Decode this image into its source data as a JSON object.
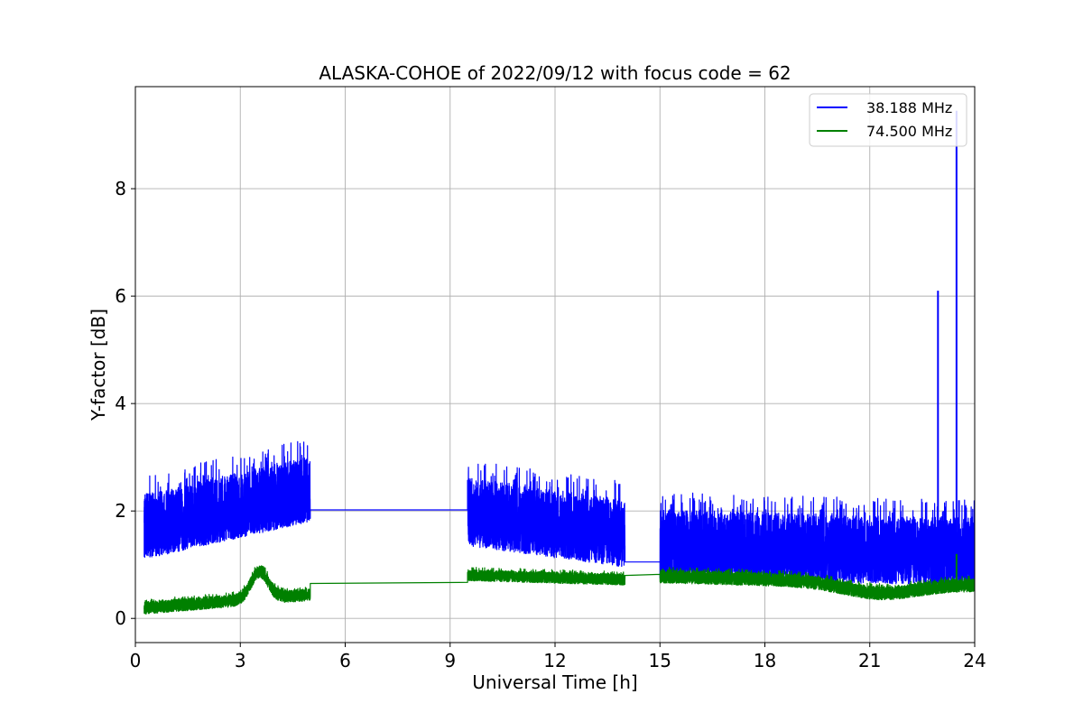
{
  "chart_data": {
    "type": "line",
    "title": "ALASKA-COHOE of 2022/09/12 with focus code = 62",
    "xlabel": "Universal Time [h]",
    "ylabel": "Y-factor [dB]",
    "xlim": [
      0,
      24
    ],
    "ylim": [
      -0.45,
      9.9
    ],
    "xticks": [
      0,
      3,
      6,
      9,
      12,
      15,
      18,
      21,
      24
    ],
    "yticks": [
      0,
      2,
      4,
      6,
      8
    ],
    "grid": true,
    "legend_position": "top-right",
    "series": [
      {
        "name": "38.188 MHz",
        "color": "#0000ff",
        "segments": [
          {
            "kind": "noise",
            "x": [
              0.25,
              5.0
            ],
            "base": [
              1.55,
              2.25
            ],
            "amp_low": 0.45,
            "amp_high": 0.85,
            "rate": 90
          },
          {
            "kind": "line",
            "x": [
              5.0,
              9.5
            ],
            "y": [
              2.02,
              2.02
            ]
          },
          {
            "kind": "noise",
            "x": [
              9.5,
              14.0
            ],
            "base": [
              1.85,
              1.45
            ],
            "amp_low": 0.5,
            "amp_high": 0.85,
            "rate": 90
          },
          {
            "kind": "line",
            "x": [
              14.0,
              15.0
            ],
            "y": [
              1.05,
              1.05
            ]
          },
          {
            "kind": "noise",
            "x": [
              15.0,
              24.0
            ],
            "base": [
              1.25,
              1.1
            ],
            "amp_low": 0.5,
            "amp_high": 0.85,
            "rate": 90
          }
        ],
        "peaks": [
          {
            "x": 22.95,
            "y": 6.1
          },
          {
            "x": 23.48,
            "y": 9.45
          },
          {
            "x": 23.55,
            "y": 2.2
          }
        ]
      },
      {
        "name": "74.500 MHz",
        "color": "#008000",
        "segments": [
          {
            "kind": "noise",
            "x": [
              0.25,
              5.0
            ],
            "base": [
              0.2,
              0.45
            ],
            "amp_low": 0.12,
            "amp_high": 0.12,
            "rate": 90,
            "bump": {
              "center": 3.55,
              "width": 0.35,
              "height": 0.5
            }
          },
          {
            "kind": "line",
            "x": [
              5.0,
              9.5
            ],
            "y": [
              0.65,
              0.67
            ]
          },
          {
            "kind": "noise",
            "x": [
              9.5,
              14.0
            ],
            "base": [
              0.8,
              0.72
            ],
            "amp_low": 0.1,
            "amp_high": 0.12,
            "rate": 90
          },
          {
            "kind": "line",
            "x": [
              14.0,
              15.0
            ],
            "y": [
              0.8,
              0.82
            ]
          },
          {
            "kind": "noise",
            "x": [
              15.0,
              24.0
            ],
            "base": [
              0.78,
              0.62
            ],
            "amp_low": 0.12,
            "amp_high": 0.14,
            "rate": 90,
            "dip": {
              "center": 21.3,
              "width": 1.5,
              "depth": 0.2
            }
          }
        ],
        "peaks": [
          {
            "x": 23.48,
            "y": 1.2
          }
        ]
      }
    ]
  }
}
